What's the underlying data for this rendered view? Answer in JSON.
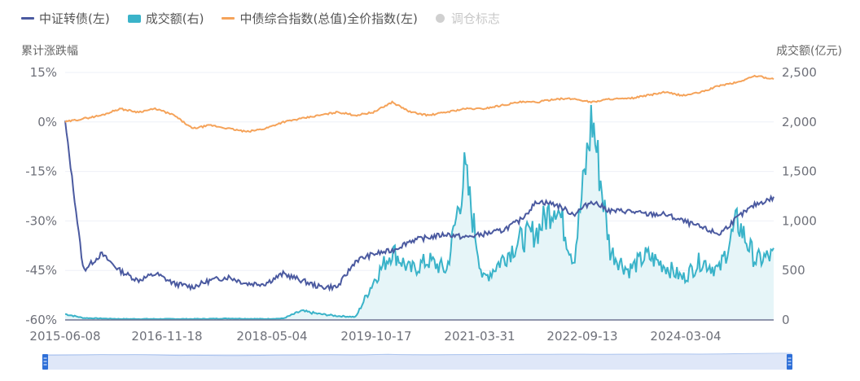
{
  "legend": {
    "items": [
      {
        "label": "中证转债(左)",
        "color": "#4b5aa0",
        "shape": "line",
        "enabled": true
      },
      {
        "label": "成交额(右)",
        "color": "#3ab3c9",
        "shape": "rect",
        "enabled": true
      },
      {
        "label": "中债综合指数(总值)全价指数(左)",
        "color": "#f5a35a",
        "shape": "line",
        "enabled": true
      },
      {
        "label": "调仓标志",
        "color": "#d0d0d0",
        "shape": "circle",
        "enabled": false
      }
    ]
  },
  "axes": {
    "left_title": "累计涨跌幅",
    "right_title": "成交额(亿元)",
    "left_ticks": [
      "15%",
      "0%",
      "-15%",
      "-30%",
      "-45%",
      "-60%"
    ],
    "right_ticks": [
      "2,500",
      "2,000",
      "1,500",
      "1,000",
      "500",
      "0"
    ],
    "x_ticks": [
      "2015-06-08",
      "2016-11-18",
      "2018-05-04",
      "2019-10-17",
      "2021-03-31",
      "2022-09-13",
      "2024-03-04"
    ]
  },
  "colors": {
    "convertible": "#4b5aa0",
    "volume": "#3ab3c9",
    "volume_fill": "#e6f5f8",
    "bond_index": "#f5a35a",
    "grid": "#eef0f7",
    "slider_bg": "#dfe7f8",
    "slider_handle": "#2e6fd8"
  },
  "chart_data": {
    "type": "line",
    "title": "",
    "xlabel": "",
    "ylabel_left": "累计涨跌幅",
    "ylabel_right": "成交额(亿元)",
    "ylim_left": [
      -60,
      15
    ],
    "ylim_right": [
      0,
      2500
    ],
    "grid": true,
    "legend_position": "top",
    "x": [
      "2015-06-08",
      "2015-08",
      "2015-10",
      "2016-01",
      "2016-04",
      "2016-07",
      "2016-11-18",
      "2017-03",
      "2017-06",
      "2017-09",
      "2017-12",
      "2018-05-04",
      "2018-08",
      "2018-11",
      "2019-02",
      "2019-05",
      "2019-08",
      "2019-10-17",
      "2020-01",
      "2020-04",
      "2020-07",
      "2020-10",
      "2021-01",
      "2021-03-31",
      "2021-06",
      "2021-09",
      "2021-12",
      "2022-03",
      "2022-06",
      "2022-09-13",
      "2022-12",
      "2023-03",
      "2023-06",
      "2023-09",
      "2023-12",
      "2024-03-04",
      "2024-06",
      "2024-09",
      "2024-12",
      "2025-03"
    ],
    "series": [
      {
        "name": "中证转债(左)",
        "axis": "left",
        "unit": "%",
        "values": [
          0,
          -45,
          -40,
          -45,
          -48,
          -46,
          -49,
          -50,
          -48,
          -47,
          -49,
          -49,
          -46,
          -48,
          -50,
          -50,
          -42,
          -40,
          -39,
          -36,
          -35,
          -34,
          -35,
          -34,
          -33,
          -30,
          -24,
          -25,
          -28,
          -24,
          -27,
          -27,
          -28,
          -28,
          -30,
          -32,
          -34,
          -29,
          -25,
          -23
        ]
      },
      {
        "name": "成交额(右)",
        "axis": "right",
        "unit": "亿元",
        "values": [
          60,
          20,
          15,
          10,
          10,
          10,
          10,
          10,
          12,
          15,
          12,
          10,
          15,
          90,
          60,
          40,
          30,
          400,
          700,
          500,
          600,
          500,
          1500,
          400,
          600,
          800,
          900,
          1200,
          600,
          2050,
          700,
          500,
          650,
          550,
          420,
          600,
          500,
          1000,
          600,
          650
        ]
      },
      {
        "name": "中债综合指数(总值)全价指数(左)",
        "axis": "left",
        "unit": "%",
        "values": [
          0,
          1,
          2,
          4,
          3,
          4,
          2,
          -2,
          -1,
          -2,
          -3,
          -2,
          0,
          1,
          2,
          3,
          2,
          3,
          6,
          3,
          2,
          3,
          4,
          4,
          5,
          6,
          6,
          7,
          7,
          6,
          7,
          7,
          8,
          9,
          8,
          9,
          11,
          12,
          14,
          13
        ]
      }
    ]
  },
  "slider": {
    "start_pct": 0,
    "end_pct": 100
  }
}
